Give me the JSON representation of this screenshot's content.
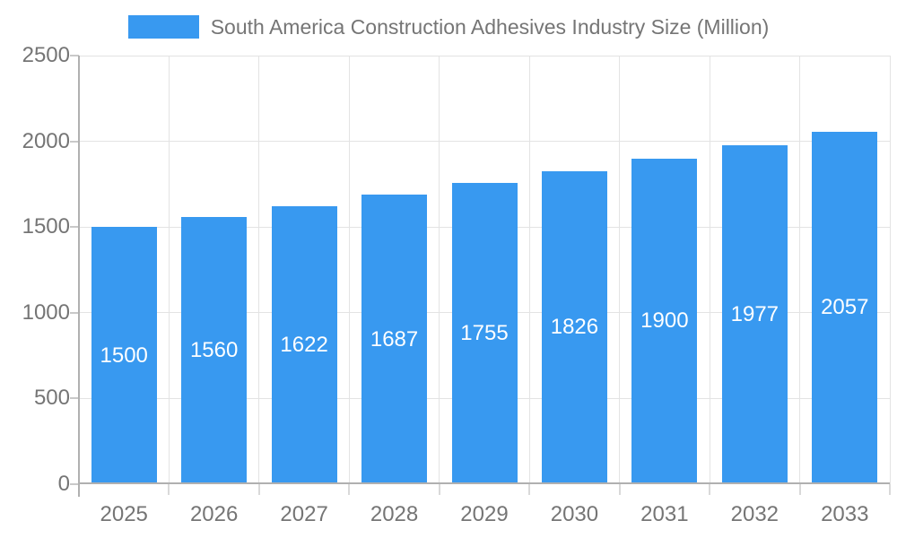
{
  "legend": {
    "label": "South America Construction Adhesives Industry Size (Million)"
  },
  "chart_data": {
    "type": "bar",
    "title": "South America Construction Adhesives Industry Size (Million)",
    "series_name": "South America Construction Adhesives Industry Size (Million)",
    "categories": [
      "2025",
      "2026",
      "2027",
      "2028",
      "2029",
      "2030",
      "2031",
      "2032",
      "2033"
    ],
    "values": [
      1500,
      1560,
      1622,
      1687,
      1755,
      1826,
      1900,
      1977,
      2057
    ],
    "ylim": [
      0,
      2500
    ],
    "yticks": [
      0,
      500,
      1000,
      1500,
      2000,
      2500
    ],
    "grid": true,
    "legend_position": "top",
    "value_labels": "inside-center",
    "colors": {
      "bar": "#3899F0",
      "value_text": "#ffffff",
      "axis_text": "#757575",
      "gridline": "#e3e3e3",
      "axis_line": "#b0b0b0",
      "background": "#ffffff"
    }
  }
}
